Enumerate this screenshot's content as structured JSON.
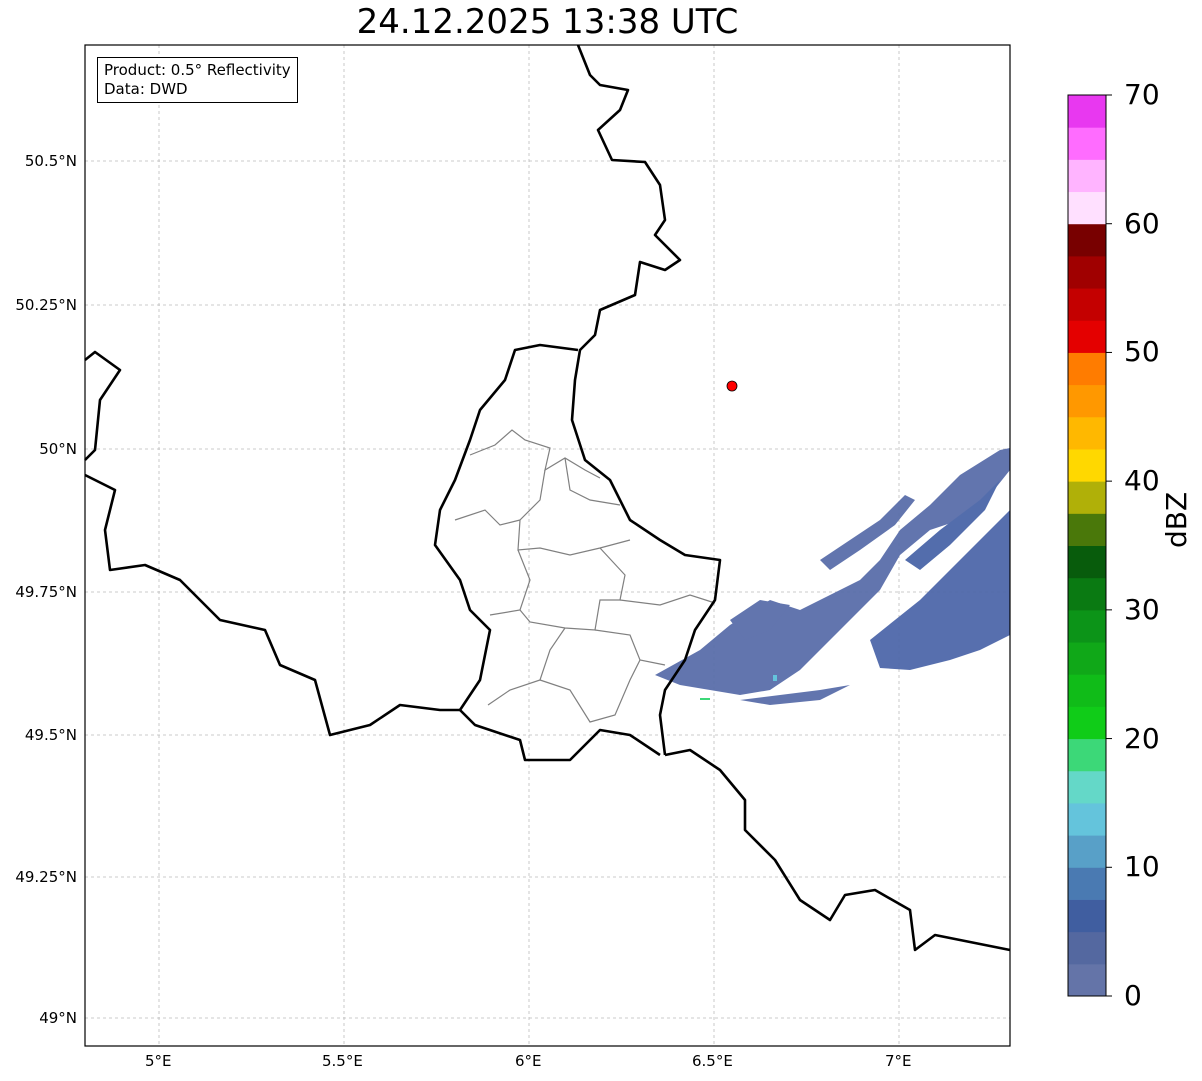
{
  "title": "24.12.2025 13:38 UTC",
  "legend": {
    "product": "Product: 0.5° Reflectivity",
    "data": "Data: DWD"
  },
  "x_ticks": [
    "5°E",
    "5.5°E",
    "6°E",
    "6.5°E",
    "7°E"
  ],
  "y_ticks": [
    "50.5°N",
    "50.25°N",
    "50°N",
    "49.75°N",
    "49.5°N",
    "49.25°N",
    "49°N"
  ],
  "colorbar": {
    "label": "dBZ",
    "ticks": [
      "0",
      "10",
      "20",
      "30",
      "40",
      "50",
      "60",
      "70"
    ],
    "range": [
      0,
      70
    ],
    "step": 2.5,
    "colors": [
      "#6474a8",
      "#5468a0",
      "#405ea0",
      "#4a7ab2",
      "#58a0c8",
      "#64c4dc",
      "#64d8c8",
      "#3cd878",
      "#10cc18",
      "#10bc18",
      "#10a818",
      "#0c9418",
      "#0a7a12",
      "#085c0c",
      "#4a780a",
      "#b0b008",
      "#ffd800",
      "#ffb800",
      "#ff9800",
      "#ff7c00",
      "#e40000",
      "#c40000",
      "#a00000",
      "#780000",
      "#ffe0ff",
      "#ffb4ff",
      "#ff6cff",
      "#e838f0"
    ]
  },
  "radar_site_color": "#ff0000",
  "echo_color": "#5a6eaa"
}
